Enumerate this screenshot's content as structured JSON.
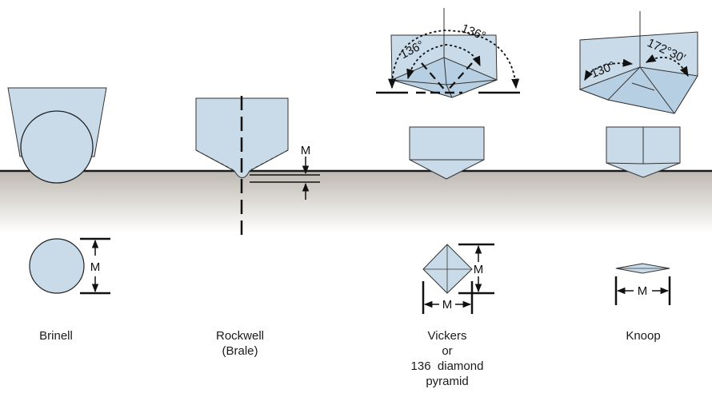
{
  "indenters": {
    "brinell": {
      "name": "Brinell",
      "dim_label": "M"
    },
    "rockwell": {
      "name_line1": "Rockwell",
      "name_line2": "(Brale)",
      "dim_label": "M"
    },
    "vickers": {
      "name_line1": "Vickers",
      "name_line2": "or",
      "name_line3": "136  diamond",
      "name_line4": "pyramid",
      "angle_outer": "136°",
      "angle_inner": "136°",
      "dim_label_h": "M",
      "dim_label_v": "M"
    },
    "knoop": {
      "name": "Knoop",
      "angle_left": "130°",
      "angle_right": "172°30′",
      "dim_label": "M"
    }
  },
  "colors": {
    "indenter_fill": "#c9dbe9",
    "outline": "#2a2a2a",
    "surface_shade": "#c8c4bc"
  }
}
